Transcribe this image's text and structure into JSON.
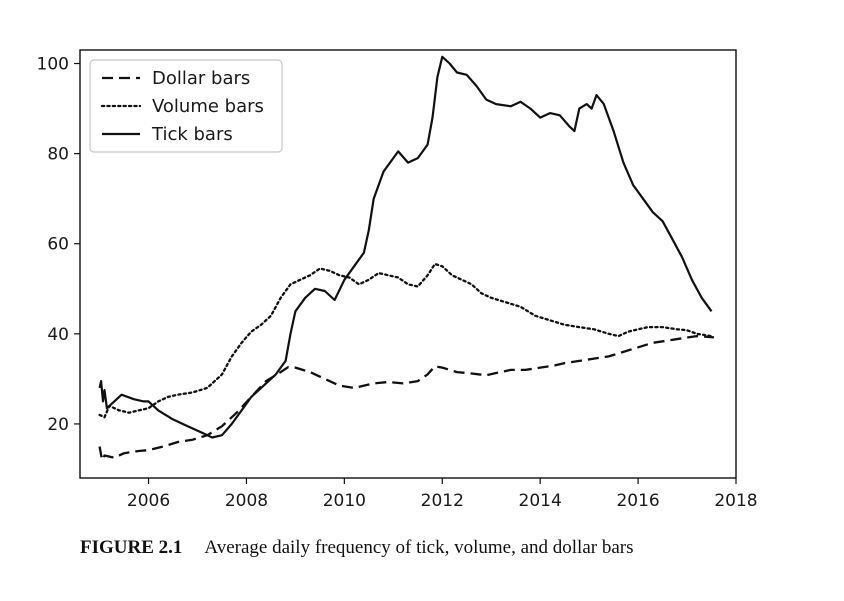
{
  "caption": {
    "figure_number": "FIGURE 2.1",
    "text": "Average daily frequency of tick, volume, and dollar bars"
  },
  "chart_data": {
    "type": "line",
    "title": "",
    "xlabel": "",
    "ylabel": "",
    "xlim": [
      2004.6,
      2018.0
    ],
    "ylim": [
      8,
      103
    ],
    "x_ticks": [
      2006,
      2008,
      2010,
      2012,
      2014,
      2016,
      2018
    ],
    "y_ticks": [
      20,
      40,
      60,
      80,
      100
    ],
    "grid": false,
    "legend_position": "top-left",
    "series": [
      {
        "name": "Dollar bars",
        "style": "dashed",
        "color": "#111111",
        "points": [
          [
            2005.0,
            15
          ],
          [
            2005.05,
            12
          ],
          [
            2005.1,
            13
          ],
          [
            2005.3,
            12.5
          ],
          [
            2005.5,
            13.5
          ],
          [
            2005.8,
            14
          ],
          [
            2006.0,
            14.2
          ],
          [
            2006.3,
            15
          ],
          [
            2006.6,
            16
          ],
          [
            2006.9,
            16.5
          ],
          [
            2007.2,
            17.5
          ],
          [
            2007.5,
            19.5
          ],
          [
            2007.8,
            22.5
          ],
          [
            2008.1,
            26
          ],
          [
            2008.4,
            29.5
          ],
          [
            2008.7,
            31.5
          ],
          [
            2008.85,
            32.6
          ],
          [
            2009.0,
            32.5
          ],
          [
            2009.3,
            31.5
          ],
          [
            2009.6,
            30
          ],
          [
            2009.9,
            28.5
          ],
          [
            2010.2,
            28
          ],
          [
            2010.4,
            28.5
          ],
          [
            2010.6,
            29
          ],
          [
            2010.9,
            29.3
          ],
          [
            2011.2,
            29
          ],
          [
            2011.5,
            29.5
          ],
          [
            2011.7,
            31
          ],
          [
            2011.85,
            32.8
          ],
          [
            2012.0,
            32.5
          ],
          [
            2012.3,
            31.5
          ],
          [
            2012.6,
            31.2
          ],
          [
            2012.9,
            30.8
          ],
          [
            2013.1,
            31.3
          ],
          [
            2013.4,
            32
          ],
          [
            2013.7,
            32
          ],
          [
            2014.0,
            32.5
          ],
          [
            2014.3,
            33
          ],
          [
            2014.5,
            33.5
          ],
          [
            2014.8,
            34
          ],
          [
            2015.1,
            34.5
          ],
          [
            2015.4,
            35
          ],
          [
            2015.7,
            36
          ],
          [
            2016.0,
            37
          ],
          [
            2016.3,
            38
          ],
          [
            2016.6,
            38.5
          ],
          [
            2016.9,
            39
          ],
          [
            2017.2,
            39.5
          ],
          [
            2017.55,
            39.2
          ]
        ]
      },
      {
        "name": "Volume bars",
        "style": "dotted",
        "color": "#111111",
        "points": [
          [
            2005.0,
            22
          ],
          [
            2005.1,
            21.5
          ],
          [
            2005.2,
            24
          ],
          [
            2005.4,
            23
          ],
          [
            2005.6,
            22.5
          ],
          [
            2005.8,
            23
          ],
          [
            2006.0,
            23.5
          ],
          [
            2006.2,
            25
          ],
          [
            2006.4,
            26
          ],
          [
            2006.6,
            26.5
          ],
          [
            2006.9,
            27
          ],
          [
            2007.2,
            28
          ],
          [
            2007.5,
            31
          ],
          [
            2007.7,
            35
          ],
          [
            2007.9,
            38
          ],
          [
            2008.1,
            40.5
          ],
          [
            2008.3,
            42
          ],
          [
            2008.5,
            44
          ],
          [
            2008.7,
            48
          ],
          [
            2008.9,
            51
          ],
          [
            2009.1,
            52
          ],
          [
            2009.3,
            53
          ],
          [
            2009.5,
            54.5
          ],
          [
            2009.7,
            54
          ],
          [
            2009.9,
            53
          ],
          [
            2010.1,
            52.5
          ],
          [
            2010.3,
            51
          ],
          [
            2010.5,
            52
          ],
          [
            2010.7,
            53.5
          ],
          [
            2010.9,
            53
          ],
          [
            2011.1,
            52.5
          ],
          [
            2011.3,
            51
          ],
          [
            2011.5,
            50.5
          ],
          [
            2011.7,
            53
          ],
          [
            2011.85,
            55.5
          ],
          [
            2012.0,
            55
          ],
          [
            2012.2,
            53
          ],
          [
            2012.4,
            52
          ],
          [
            2012.6,
            51
          ],
          [
            2012.8,
            49
          ],
          [
            2013.0,
            48
          ],
          [
            2013.3,
            47
          ],
          [
            2013.6,
            46
          ],
          [
            2013.9,
            44
          ],
          [
            2014.2,
            43
          ],
          [
            2014.5,
            42
          ],
          [
            2014.8,
            41.5
          ],
          [
            2015.1,
            41
          ],
          [
            2015.4,
            40
          ],
          [
            2015.6,
            39.5
          ],
          [
            2015.8,
            40.5
          ],
          [
            2016.0,
            41
          ],
          [
            2016.2,
            41.5
          ],
          [
            2016.5,
            41.5
          ],
          [
            2016.8,
            41
          ],
          [
            2017.0,
            40.8
          ],
          [
            2017.2,
            40
          ],
          [
            2017.5,
            39.5
          ]
        ]
      },
      {
        "name": "Tick bars",
        "style": "solid",
        "color": "#111111",
        "points": [
          [
            2005.0,
            28
          ],
          [
            2005.03,
            29.5
          ],
          [
            2005.07,
            25
          ],
          [
            2005.1,
            27.5
          ],
          [
            2005.15,
            23.5
          ],
          [
            2005.3,
            25
          ],
          [
            2005.45,
            26.5
          ],
          [
            2005.7,
            25.5
          ],
          [
            2005.9,
            25
          ],
          [
            2006.0,
            25
          ],
          [
            2006.2,
            23
          ],
          [
            2006.5,
            21
          ],
          [
            2006.8,
            19.5
          ],
          [
            2007.1,
            18
          ],
          [
            2007.3,
            17
          ],
          [
            2007.5,
            17.5
          ],
          [
            2007.7,
            20
          ],
          [
            2007.9,
            23
          ],
          [
            2008.1,
            26
          ],
          [
            2008.3,
            28
          ],
          [
            2008.6,
            31
          ],
          [
            2008.8,
            34
          ],
          [
            2008.9,
            40
          ],
          [
            2009.0,
            45
          ],
          [
            2009.2,
            48
          ],
          [
            2009.4,
            50
          ],
          [
            2009.6,
            49.5
          ],
          [
            2009.8,
            47.5
          ],
          [
            2010.0,
            52
          ],
          [
            2010.2,
            55
          ],
          [
            2010.4,
            58
          ],
          [
            2010.5,
            63
          ],
          [
            2010.6,
            70
          ],
          [
            2010.8,
            76
          ],
          [
            2011.0,
            79
          ],
          [
            2011.1,
            80.5
          ],
          [
            2011.3,
            78
          ],
          [
            2011.5,
            79
          ],
          [
            2011.7,
            82
          ],
          [
            2011.8,
            88
          ],
          [
            2011.9,
            97
          ],
          [
            2012.0,
            101.5
          ],
          [
            2012.15,
            100
          ],
          [
            2012.3,
            98
          ],
          [
            2012.5,
            97.5
          ],
          [
            2012.7,
            95
          ],
          [
            2012.9,
            92
          ],
          [
            2013.1,
            91
          ],
          [
            2013.4,
            90.5
          ],
          [
            2013.6,
            91.5
          ],
          [
            2013.8,
            90
          ],
          [
            2014.0,
            88
          ],
          [
            2014.2,
            89
          ],
          [
            2014.4,
            88.5
          ],
          [
            2014.6,
            86
          ],
          [
            2014.7,
            85
          ],
          [
            2014.8,
            90
          ],
          [
            2014.95,
            91
          ],
          [
            2015.05,
            90
          ],
          [
            2015.15,
            93
          ],
          [
            2015.3,
            91
          ],
          [
            2015.5,
            85
          ],
          [
            2015.7,
            78
          ],
          [
            2015.9,
            73
          ],
          [
            2016.1,
            70
          ],
          [
            2016.3,
            67
          ],
          [
            2016.5,
            65
          ],
          [
            2016.7,
            61
          ],
          [
            2016.9,
            57
          ],
          [
            2017.1,
            52
          ],
          [
            2017.3,
            48
          ],
          [
            2017.5,
            45
          ]
        ]
      }
    ]
  }
}
